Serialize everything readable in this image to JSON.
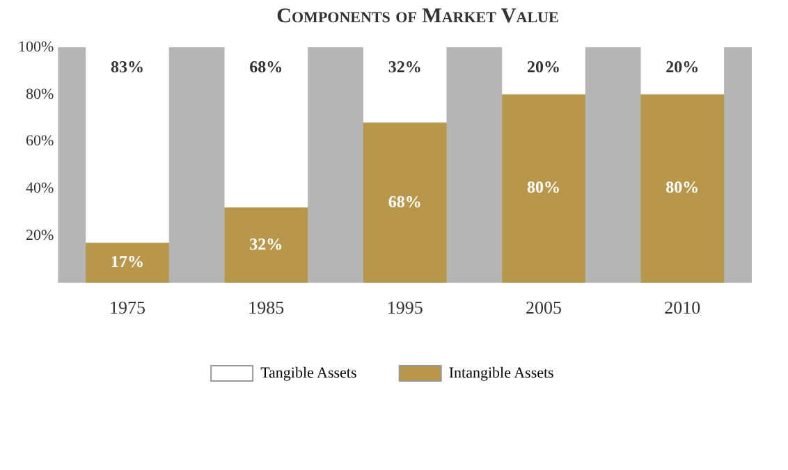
{
  "chart_data": {
    "type": "bar",
    "title": "Components of Market Value",
    "categories": [
      "1975",
      "1985",
      "1995",
      "2005",
      "2010"
    ],
    "stacked": true,
    "series": [
      {
        "name": "Intangible Assets",
        "color": "#b8974a",
        "values": [
          17,
          32,
          68,
          80,
          80
        ],
        "value_labels": [
          "17%",
          "32%",
          "68%",
          "80%",
          "80%"
        ]
      },
      {
        "name": "Tangible Assets",
        "color": "#ffffff",
        "values": [
          83,
          68,
          32,
          20,
          20
        ],
        "value_labels": [
          "83%",
          "68%",
          "32%",
          "20%",
          "20%"
        ]
      }
    ],
    "ylim": [
      0,
      100
    ],
    "yticks": [
      {
        "value": 20,
        "label": "20%"
      },
      {
        "value": 40,
        "label": "40%"
      },
      {
        "value": 60,
        "label": "60%"
      },
      {
        "value": 80,
        "label": "80%"
      },
      {
        "value": 100,
        "label": "100%"
      }
    ],
    "grid": false,
    "legend": "bottom"
  }
}
